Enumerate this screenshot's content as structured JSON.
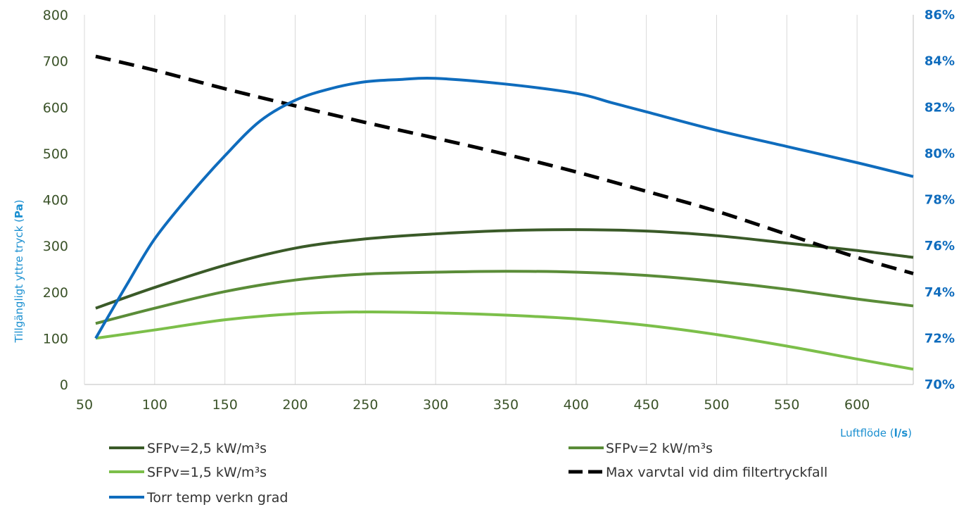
{
  "chart_data": {
    "type": "line",
    "title": "",
    "xlabel": {
      "text": "Luftflöde",
      "unit": "l/s"
    },
    "ylabel_left": {
      "text": "Tillgängligt yttre tryck",
      "unit": "Pa"
    },
    "x_ticks": [
      "50",
      "100",
      "150",
      "200",
      "250",
      "300",
      "350",
      "400",
      "450",
      "500",
      "550",
      "600"
    ],
    "y_left_ticks": [
      "0",
      "100",
      "200",
      "300",
      "400",
      "500",
      "600",
      "700",
      "800"
    ],
    "y_right_ticks": [
      "70%",
      "72%",
      "74%",
      "76%",
      "78%",
      "80%",
      "82%",
      "84%",
      "86%"
    ],
    "xlim": [
      50,
      640
    ],
    "ylim_left": [
      0,
      800
    ],
    "ylim_right": [
      70,
      86
    ],
    "grid": "vertical",
    "legend_position": "bottom",
    "series": [
      {
        "name": "SFPv=2,5 kW/m³s",
        "axis": "left",
        "color": "#3a5a28",
        "dash": "solid",
        "x": [
          58,
          100,
          150,
          200,
          250,
          300,
          350,
          400,
          450,
          500,
          550,
          600,
          640
        ],
        "y": [
          165,
          210,
          258,
          295,
          315,
          326,
          333,
          335,
          332,
          322,
          306,
          290,
          275
        ]
      },
      {
        "name": "SFPv=2 kW/m³s",
        "axis": "left",
        "color": "#5a8c38",
        "dash": "solid",
        "x": [
          58,
          100,
          150,
          200,
          250,
          300,
          350,
          400,
          450,
          500,
          550,
          600,
          640
        ],
        "y": [
          132,
          165,
          201,
          226,
          239,
          243,
          245,
          243,
          236,
          223,
          206,
          185,
          170
        ]
      },
      {
        "name": "SFPv=1,5 kW/m³s",
        "axis": "left",
        "color": "#7cbf4a",
        "dash": "solid",
        "x": [
          58,
          100,
          150,
          200,
          250,
          300,
          350,
          400,
          450,
          500,
          550,
          600,
          640
        ],
        "y": [
          100,
          118,
          140,
          153,
          157,
          155,
          150,
          142,
          128,
          108,
          83,
          55,
          33
        ]
      },
      {
        "name": "Max varvtal vid dim filtertryckfall",
        "axis": "left",
        "color": "#000000",
        "dash": "dashed",
        "x": [
          58,
          100,
          150,
          200,
          250,
          300,
          350,
          400,
          450,
          500,
          550,
          600,
          640
        ],
        "y": [
          710,
          680,
          640,
          603,
          567,
          533,
          498,
          460,
          418,
          375,
          325,
          275,
          240
        ]
      },
      {
        "name": "Torr temp verkn grad",
        "axis": "right",
        "color": "#0f6cbd",
        "dash": "solid",
        "x": [
          58,
          80,
          100,
          125,
          150,
          175,
          200,
          225,
          250,
          275,
          300,
          350,
          400,
          425,
          450,
          500,
          550,
          600,
          640
        ],
        "y": [
          72.0,
          74.3,
          76.3,
          78.2,
          79.9,
          81.4,
          82.3,
          82.8,
          83.1,
          83.2,
          83.25,
          83.0,
          82.6,
          82.2,
          81.8,
          81.0,
          80.3,
          79.6,
          79.0
        ]
      }
    ]
  }
}
